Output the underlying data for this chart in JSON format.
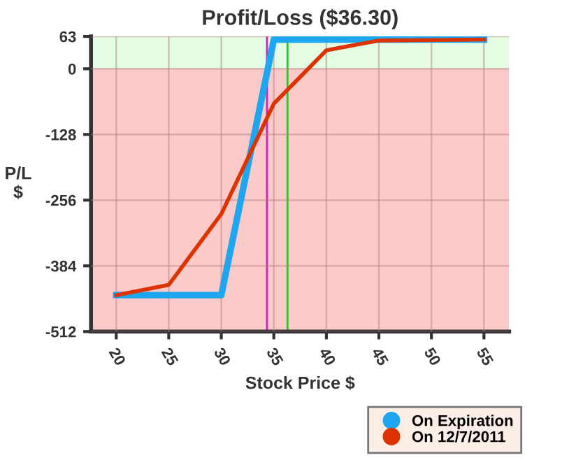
{
  "chart_data": {
    "type": "line",
    "title": "Profit/Loss ($36.30)",
    "xlabel": "Stock Price $",
    "ylabel": "P/L\n$",
    "series": [
      {
        "name": "On Expiration",
        "color": "#1ea7f0",
        "x": [
          20,
          30,
          35,
          55
        ],
        "values": [
          -441,
          -441,
          57,
          57
        ]
      },
      {
        "name": "On 12/7/2011",
        "color": "#dd3300",
        "x": [
          20,
          25,
          30,
          35,
          40,
          45,
          55
        ],
        "values": [
          -441,
          -421,
          -283,
          -68,
          36,
          55,
          57
        ]
      }
    ],
    "xlim": [
      17.6,
      57.4
    ],
    "xticks": [
      20,
      25,
      30,
      35,
      40,
      45,
      50,
      55
    ],
    "ylim": [
      -512,
      63
    ],
    "yticks": [
      -512,
      -384,
      -256,
      -128,
      0,
      63
    ],
    "bands": [
      {
        "axis": "y",
        "from": 0,
        "to": 63,
        "color": "#e3fce3"
      },
      {
        "axis": "y",
        "from": -512,
        "to": 0,
        "color": "#fdcaca"
      }
    ],
    "ref_lines": [
      {
        "axis": "x",
        "value": 34.35,
        "color": "#d020c0"
      },
      {
        "axis": "x",
        "value": 36.3,
        "color": "#30c030"
      }
    ],
    "grid": true,
    "legend": "bottom right",
    "marker": "none",
    "line_style": "solid"
  }
}
